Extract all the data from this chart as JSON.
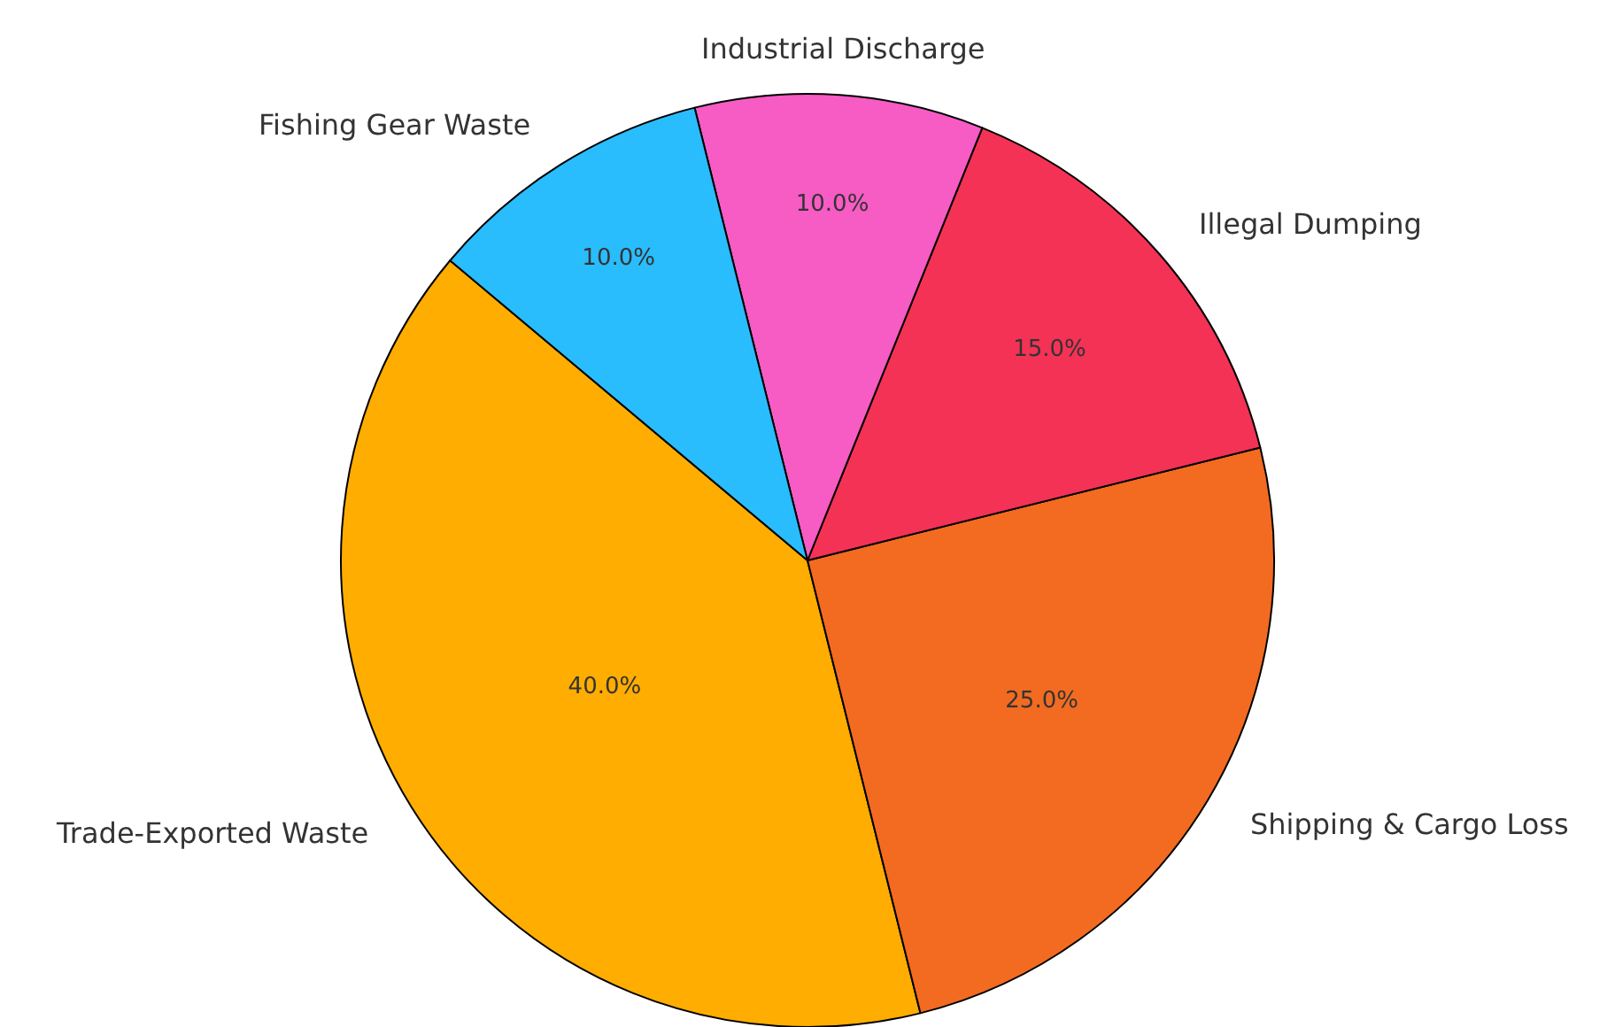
{
  "chart_data": {
    "type": "pie",
    "categories": [
      "Trade-Exported Waste",
      "Shipping & Cargo Loss",
      "Illegal Dumping",
      "Industrial Discharge",
      "Fishing Gear Waste"
    ],
    "values": [
      40,
      25,
      15,
      10,
      10
    ],
    "value_labels": [
      "40.0%",
      "25.0%",
      "15.0%",
      "10.0%",
      "10.0%"
    ],
    "colors": [
      "#ffad00",
      "#f26b21",
      "#f43256",
      "#f75bc4",
      "#29bdfd"
    ],
    "legend": false
  }
}
